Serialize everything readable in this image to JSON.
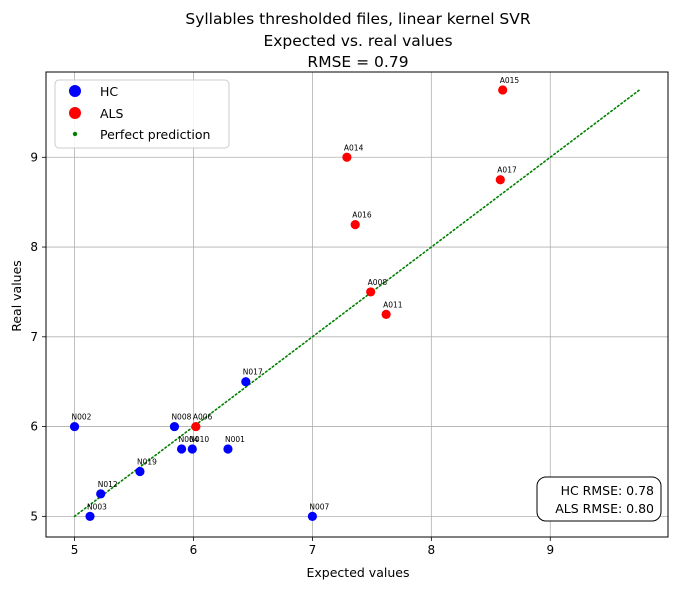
{
  "chart_data": {
    "type": "scatter",
    "title": [
      "Syllables thresholded files, linear kernel SVR",
      "Expected vs. real values",
      "RMSE = 0.79"
    ],
    "xlabel": "Expected values",
    "ylabel": "Real values",
    "xlim": [
      4.76,
      9.99
    ],
    "ylim": [
      4.77,
      9.95
    ],
    "xticks": [
      5,
      6,
      7,
      8,
      9
    ],
    "yticks": [
      5,
      6,
      7,
      8,
      9
    ],
    "grid": true,
    "legend": {
      "placement": "top-left",
      "entries": [
        {
          "label": "HC",
          "color": "#0000ff",
          "marker": "large-dot"
        },
        {
          "label": "ALS",
          "color": "#ff0000",
          "marker": "large-dot"
        },
        {
          "label": "Perfect prediction",
          "color": "#008000",
          "marker": "small-dot"
        }
      ]
    },
    "series": [
      {
        "name": "HC",
        "color": "#0000ff",
        "points": [
          {
            "label": "N002",
            "x": 5.0,
            "y": 6.0
          },
          {
            "label": "N003",
            "x": 5.13,
            "y": 5.0
          },
          {
            "label": "N012",
            "x": 5.22,
            "y": 5.25
          },
          {
            "label": "N019",
            "x": 5.55,
            "y": 5.5
          },
          {
            "label": "N008",
            "x": 5.84,
            "y": 6.0
          },
          {
            "label": "N004",
            "x": 5.9,
            "y": 5.75
          },
          {
            "label": "N010",
            "x": 5.99,
            "y": 5.75
          },
          {
            "label": "N001",
            "x": 6.29,
            "y": 5.75
          },
          {
            "label": "N017",
            "x": 6.44,
            "y": 6.5
          },
          {
            "label": "N007",
            "x": 7.0,
            "y": 5.0
          }
        ]
      },
      {
        "name": "ALS",
        "color": "#ff0000",
        "points": [
          {
            "label": "A006",
            "x": 6.02,
            "y": 6.0
          },
          {
            "label": "A014",
            "x": 7.29,
            "y": 9.0
          },
          {
            "label": "A016",
            "x": 7.36,
            "y": 8.25
          },
          {
            "label": "A008",
            "x": 7.49,
            "y": 7.5
          },
          {
            "label": "A011",
            "x": 7.62,
            "y": 7.25
          },
          {
            "label": "A017",
            "x": 8.58,
            "y": 8.75
          },
          {
            "label": "A015",
            "x": 8.6,
            "y": 9.75
          }
        ]
      },
      {
        "name": "Perfect prediction",
        "color": "#008000",
        "style": "dotted-line",
        "x": [
          5.0,
          9.75
        ],
        "y": [
          5.0,
          9.75
        ]
      }
    ],
    "annotation_box": {
      "placement": "bottom-right",
      "lines": [
        "HC RMSE: 0.78",
        "ALS RMSE: 0.80"
      ]
    }
  }
}
